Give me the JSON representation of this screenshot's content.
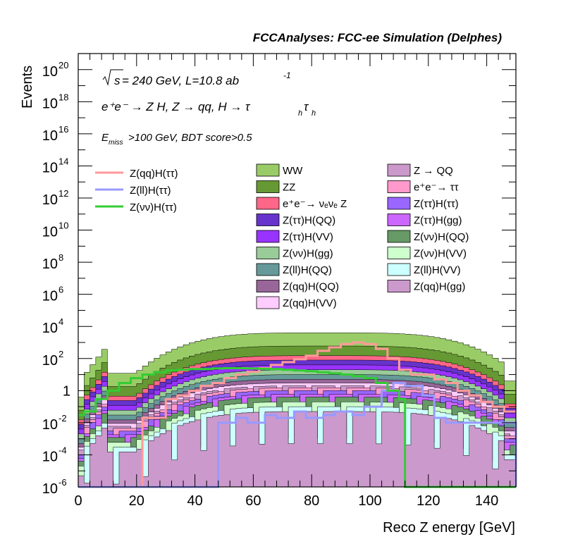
{
  "chart_data": {
    "type": "histogram",
    "title": "FCCAnalyses: FCC-ee Simulation (Delphes)",
    "xlabel": "Reco Z energy [GeV]",
    "ylabel": "Events",
    "xlim": [
      0,
      150
    ],
    "ylim_exponent": [
      -6,
      21
    ],
    "y_scale": "log",
    "x_ticks": [
      "0",
      "20",
      "40",
      "60",
      "80",
      "100",
      "120",
      "140"
    ],
    "y_ticks": [
      {
        "base": "10",
        "exp": "-6",
        "e": -6
      },
      {
        "base": "10",
        "exp": "-4",
        "e": -4
      },
      {
        "base": "10",
        "exp": "-2",
        "e": -2
      },
      {
        "base": "1",
        "exp": "",
        "e": 0
      },
      {
        "base": "10",
        "exp": "2",
        "e": 2
      },
      {
        "base": "10",
        "exp": "4",
        "e": 4
      },
      {
        "base": "10",
        "exp": "6",
        "e": 6
      },
      {
        "base": "10",
        "exp": "8",
        "e": 8
      },
      {
        "base": "10",
        "exp": "10",
        "e": 10
      },
      {
        "base": "10",
        "exp": "12",
        "e": 12
      },
      {
        "base": "10",
        "exp": "14",
        "e": 14
      },
      {
        "base": "10",
        "exp": "16",
        "e": 16
      },
      {
        "base": "10",
        "exp": "18",
        "e": 18
      },
      {
        "base": "10",
        "exp": "20",
        "e": 20
      }
    ],
    "annotations": {
      "line1_sqrt": "s",
      "line1_rest": " = 240 GeV, L=10.8 ab",
      "line1_sup": "-1",
      "line2": "e⁺e⁻ → Z H, Z → qq, H → τ",
      "line2_sub1": "h",
      "line2_tau": "τ",
      "line2_sub2": "h",
      "line3_E": "E",
      "line3_sub": "miss",
      "line3_rest": ">100 GeV, BDT score>0.5"
    },
    "signals": [
      {
        "name": "Z(qq)H(ττ)",
        "color": "#ff9999",
        "x": [
          0,
          18,
          22,
          26,
          30,
          34,
          38,
          42,
          46,
          50,
          54,
          58,
          62,
          66,
          70,
          74,
          78,
          82,
          86,
          90,
          94,
          98,
          102,
          106,
          110,
          114,
          118,
          122,
          126,
          130,
          134,
          138,
          142,
          146,
          150
        ],
        "values": [
          1e-07,
          1e-07,
          0.02,
          0.02,
          0.3,
          0.5,
          1,
          2,
          3,
          6,
          10,
          15,
          25,
          40,
          60,
          90,
          150,
          300,
          500,
          800,
          1000,
          800,
          400,
          100,
          20,
          10,
          10,
          5,
          3,
          1,
          0.5,
          0.2,
          0.1,
          0.05,
          0.05
        ]
      },
      {
        "name": "Z(ll)H(ττ)",
        "color": "#9999ff",
        "x": [
          0,
          44,
          48,
          54,
          58,
          64,
          68,
          74,
          78,
          84,
          88,
          94,
          98,
          104,
          108,
          112,
          118,
          122,
          126,
          150
        ],
        "values": [
          1e-07,
          1e-07,
          0.01,
          0.02,
          0.01,
          0.03,
          0.02,
          0.05,
          0.02,
          0.03,
          0.05,
          0.03,
          0.1,
          1,
          3,
          2,
          0.5,
          0.02,
          0.01,
          1e-07
        ]
      },
      {
        "name": "Z(νν)H(ττ)",
        "color": "#33cc33",
        "x": [
          0,
          2,
          6,
          10,
          14,
          18,
          22,
          26,
          30,
          34,
          38,
          42,
          46,
          50,
          54,
          58,
          62,
          66,
          70,
          74,
          78,
          82,
          86,
          90,
          94,
          98,
          102,
          106,
          110,
          112,
          150
        ],
        "values": [
          0.03,
          0.05,
          0.3,
          1,
          3,
          6,
          10,
          14,
          18,
          20,
          22,
          22,
          24,
          25,
          25,
          24,
          23,
          22,
          20,
          18,
          16,
          14,
          12,
          10,
          8,
          6,
          3,
          1,
          0.3,
          1e-07,
          1e-07
        ]
      }
    ],
    "backgrounds": [
      {
        "name": "WW",
        "color": "#99cc66",
        "level": 4000
      },
      {
        "name": "ZZ",
        "color": "#669933",
        "level": 600
      },
      {
        "name": "e⁺e⁻→ νₑνₑ Z",
        "color": "#ff6688",
        "level": 150
      },
      {
        "name": "Z(ττ)H(QQ)",
        "color": "#6633cc",
        "level": 80
      },
      {
        "name": "Z(ττ)H(VV)",
        "color": "#9933ff",
        "level": 40
      },
      {
        "name": "Z(νν)H(gg)",
        "color": "#99cc99",
        "level": 20
      },
      {
        "name": "Z(ll)H(QQ)",
        "color": "#669999",
        "level": 10
      },
      {
        "name": "Z(qq)H(QQ)",
        "color": "#996699",
        "level": 5
      },
      {
        "name": "Z(qq)H(VV)",
        "color": "#ffccff",
        "level": 3
      },
      {
        "name": "Z → QQ",
        "color": "#cc99cc",
        "level": 2
      },
      {
        "name": "e⁺e⁻→ ττ",
        "color": "#ff99cc",
        "level": 1.5
      },
      {
        "name": "Z(ττ)H(ττ)",
        "color": "#9966ff",
        "level": 1
      },
      {
        "name": "Z(ττ)H(gg)",
        "color": "#cc66ff",
        "level": 0.6
      },
      {
        "name": "Z(νν)H(QQ)",
        "color": "#669966",
        "level": 0.4
      },
      {
        "name": "Z(νν)H(VV)",
        "color": "#ccffcc",
        "level": 0.2
      },
      {
        "name": "Z(ll)H(VV)",
        "color": "#ccffff",
        "level": 0.1
      },
      {
        "name": "Z(qq)H(gg)",
        "color": "#cc99cc",
        "level": 0.05
      }
    ],
    "legend_placement": "upper-center and upper-right inside plot"
  }
}
